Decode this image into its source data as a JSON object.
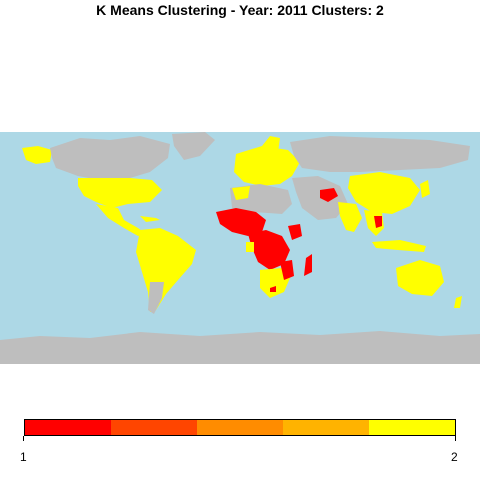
{
  "title": "K Means Clustering - Year: 2011 Clusters: 2",
  "map": {
    "ocean_color": "#add8e6",
    "no_data_color": "#bebebe",
    "cluster_colors": {
      "1": "#ff0000",
      "2": "#ffff00"
    }
  },
  "legend": {
    "colors": [
      "#ff0000",
      "#ff4500",
      "#ff8c00",
      "#ffb300",
      "#ffff00"
    ],
    "min_label": "1",
    "max_label": "2"
  }
}
